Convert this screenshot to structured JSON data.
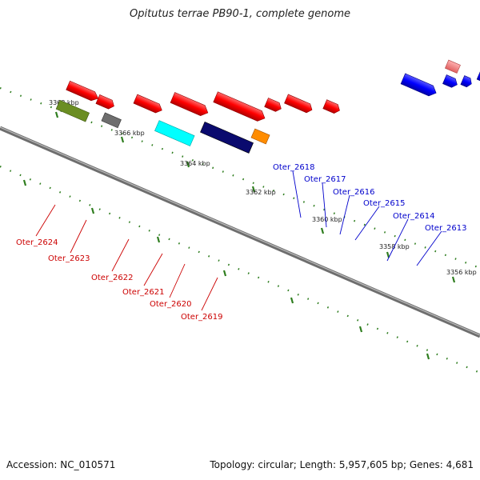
{
  "title": "Opitutus terrae PB90-1, complete genome",
  "footer": {
    "accession": "Accession: NC_010571",
    "topology": "Topology: circular; Length: 5,957,605 bp; Genes: 4,681"
  },
  "colors": {
    "upper_label": "#0000cc",
    "lower_label": "#cc0000",
    "tick": "#2e7d1e",
    "backbone": "#808080"
  },
  "scale_labels": [
    "3368 kbp",
    "3366 kbp",
    "3364 kbp",
    "3362 kbp",
    "3360 kbp",
    "3358 kbp",
    "3356 kbp"
  ],
  "upper_genes": [
    "Oter_2618",
    "Oter_2617",
    "Oter_2616",
    "Oter_2615",
    "Oter_2614",
    "Oter_2613"
  ],
  "lower_genes": [
    "Oter_2624",
    "Oter_2623",
    "Oter_2622",
    "Oter_2621",
    "Oter_2620",
    "Oter_2619"
  ]
}
